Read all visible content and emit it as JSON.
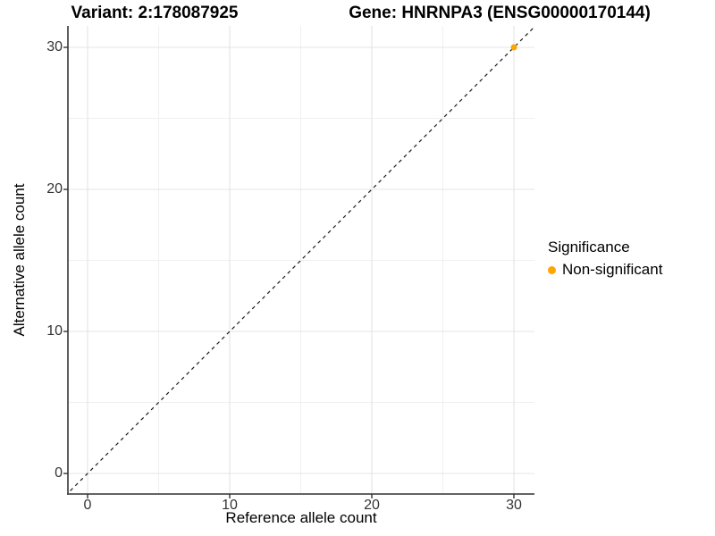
{
  "chart_data": {
    "type": "scatter",
    "title_left": "Variant: 2:178087925",
    "title_right": "Gene: HNRNPA3 (ENSG00000170144)",
    "xlabel": "Reference allele count",
    "ylabel": "Alternative allele count",
    "xlim": [
      -1.5,
      31.5
    ],
    "ylim": [
      -1.5,
      31.5
    ],
    "x_ticks": [
      0,
      10,
      20,
      30
    ],
    "y_ticks": [
      0,
      10,
      20,
      30
    ],
    "x_minor_ticks": [
      5,
      15,
      25
    ],
    "y_minor_ticks": [
      5,
      15,
      25
    ],
    "grid": true,
    "legend_position": "right",
    "reference_line": {
      "type": "abline",
      "slope": 1,
      "intercept": 0,
      "style": "dashed",
      "color": "#1a1a1a"
    },
    "points": [
      {
        "x": 30,
        "y": 30,
        "series": "Non-significant"
      }
    ],
    "legend": {
      "title": "Significance",
      "items": [
        {
          "label": "Non-significant",
          "color": "#FFA500"
        }
      ]
    },
    "style": {
      "point_color": "#FFA500",
      "grid_major_color": "#e4e4e4",
      "grid_minor_color": "#f0f0f0",
      "axis_line_color": "#4d4d4d",
      "tick_color": "#333333",
      "background": "#ffffff"
    }
  }
}
